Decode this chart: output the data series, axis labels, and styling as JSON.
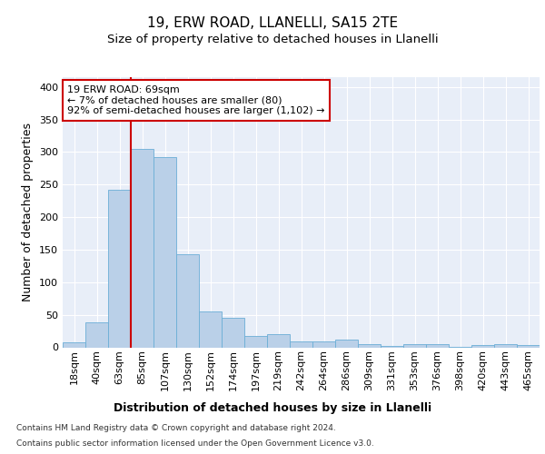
{
  "title_line1": "19, ERW ROAD, LLANELLI, SA15 2TE",
  "title_line2": "Size of property relative to detached houses in Llanelli",
  "xlabel": "Distribution of detached houses by size in Llanelli",
  "ylabel": "Number of detached properties",
  "footer_line1": "Contains HM Land Registry data © Crown copyright and database right 2024.",
  "footer_line2": "Contains public sector information licensed under the Open Government Licence v3.0.",
  "bar_labels": [
    "18sqm",
    "40sqm",
    "63sqm",
    "85sqm",
    "107sqm",
    "130sqm",
    "152sqm",
    "174sqm",
    "197sqm",
    "219sqm",
    "242sqm",
    "264sqm",
    "286sqm",
    "309sqm",
    "331sqm",
    "353sqm",
    "376sqm",
    "398sqm",
    "420sqm",
    "443sqm",
    "465sqm"
  ],
  "bar_values": [
    8,
    38,
    242,
    305,
    292,
    143,
    55,
    45,
    18,
    20,
    9,
    9,
    12,
    5,
    2,
    5,
    5,
    1,
    4,
    5,
    4
  ],
  "bar_color": "#bad0e8",
  "bar_edge_color": "#6baed6",
  "background_color": "#e8eef8",
  "grid_color": "#ffffff",
  "annotation_line1": "19 ERW ROAD: 69sqm",
  "annotation_line2": "← 7% of detached houses are smaller (80)",
  "annotation_line3": "92% of semi-detached houses are larger (1,102) →",
  "annotation_box_color": "#ffffff",
  "annotation_box_edge": "#cc0000",
  "vline_color": "#cc0000",
  "vline_x": 2.5,
  "ylim": [
    0,
    415
  ],
  "yticks": [
    0,
    50,
    100,
    150,
    200,
    250,
    300,
    350,
    400
  ],
  "title_fontsize": 11,
  "subtitle_fontsize": 9.5,
  "axis_label_fontsize": 9,
  "tick_fontsize": 8,
  "footer_fontsize": 6.5
}
